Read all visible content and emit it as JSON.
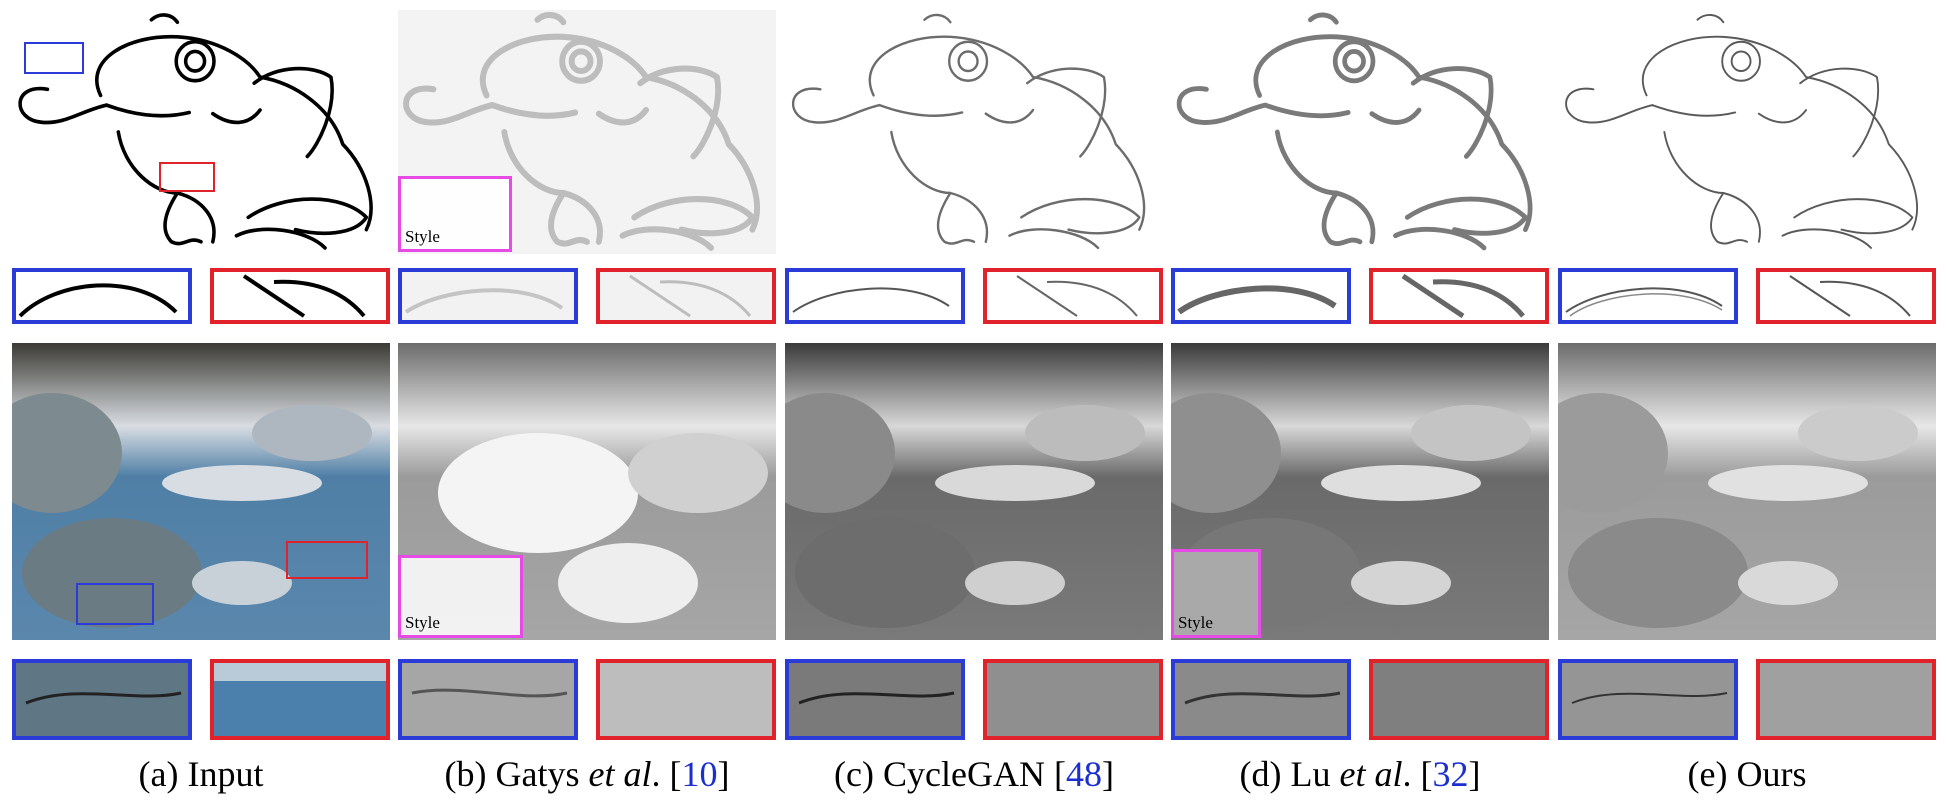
{
  "captions": [
    {
      "prefix": "(a) Input",
      "em": "",
      "suffix": "",
      "ref": ""
    },
    {
      "prefix": "(b) Gatys ",
      "em": "et al",
      "suffix": ". [",
      "ref": "10",
      "close": "]"
    },
    {
      "prefix": "(c) CycleGAN [",
      "em": "",
      "suffix": "",
      "ref": "48",
      "close": "]"
    },
    {
      "prefix": "(d) Lu ",
      "em": "et al",
      "suffix": ". [",
      "ref": "32",
      "close": "]"
    },
    {
      "prefix": "(e) Ours",
      "em": "",
      "suffix": "",
      "ref": ""
    }
  ],
  "style_labels": {
    "frog_gatys": "Style",
    "river_gatys": "Style",
    "river_lu": "Style"
  },
  "colors": {
    "crop_blue": "#2a3bd8",
    "crop_red": "#e0232b",
    "style_box": "#e64be6",
    "ref_link": "#1b2fd1"
  }
}
